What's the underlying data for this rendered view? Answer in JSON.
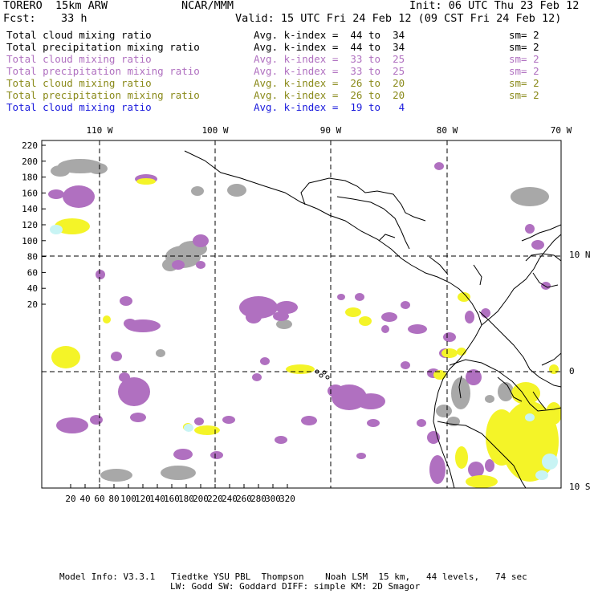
{
  "header": {
    "model": "TORERO  15km ARW",
    "org": "NCAR/MMM",
    "init": "Init: 06 UTC Thu 23 Feb 12",
    "fcst_label": "Fcst:",
    "fcst_value": "33 h",
    "valid": "Valid: 15 UTC Fri 24 Feb 12 (09 CST Fri 24 Feb 12)"
  },
  "fields": [
    {
      "name": "Total cloud mixing ratio",
      "range": "Avg. k-index =  44 to  34",
      "sm": "sm= 2",
      "color": "#000000"
    },
    {
      "name": "Total precipitation mixing ratio",
      "range": "Avg. k-index =  44 to  34",
      "sm": "sm= 2",
      "color": "#000000"
    },
    {
      "name": "Total cloud mixing ratio",
      "range": "Avg. k-index =  33 to  25",
      "sm": "sm= 2",
      "color": "#b070c0"
    },
    {
      "name": "Total precipitation mixing ratio",
      "range": "Avg. k-index =  33 to  25",
      "sm": "sm= 2",
      "color": "#b070c0"
    },
    {
      "name": "Total cloud mixing ratio",
      "range": "Avg. k-index =  26 to  20",
      "sm": "sm= 2",
      "color": "#8a8a1a"
    },
    {
      "name": "Total precipitation mixing ratio",
      "range": "Avg. k-index =  26 to  20",
      "sm": "sm= 2",
      "color": "#8a8a1a"
    },
    {
      "name": "Total cloud mixing ratio",
      "range": "Avg. k-index =  19 to   4",
      "sm": "",
      "color": "#1a1adc"
    }
  ],
  "map": {
    "lon_labels": [
      "110 W",
      "100 W",
      "90 W",
      "80 W",
      "70 W"
    ],
    "lat_labels_right": [
      "10 N",
      "0",
      "10 S"
    ],
    "y_ticks": [
      "220",
      "200",
      "180",
      "160",
      "140",
      "120",
      "100",
      "80",
      "60",
      "40",
      "20"
    ],
    "x_ticks": [
      "20",
      "40",
      "60",
      "80",
      "100",
      "120",
      "140",
      "160",
      "180",
      "200",
      "220",
      "240",
      "260",
      "280",
      "300",
      "320"
    ],
    "colors": {
      "gray_cloud": "#a8a8a8",
      "purple_cloud": "#b070c0",
      "yellow_cloud": "#f4f428",
      "cyan_cloud": "#c8f4f4",
      "frame": "#000000"
    }
  },
  "footer": {
    "line1": "Model Info: V3.3.1   Tiedtke YSU PBL  Thompson    Noah LSM  15 km,   44 levels,   74 sec",
    "line2": "LW: Godd SW: Goddard DIFF: simple KM: 2D Smagor"
  }
}
